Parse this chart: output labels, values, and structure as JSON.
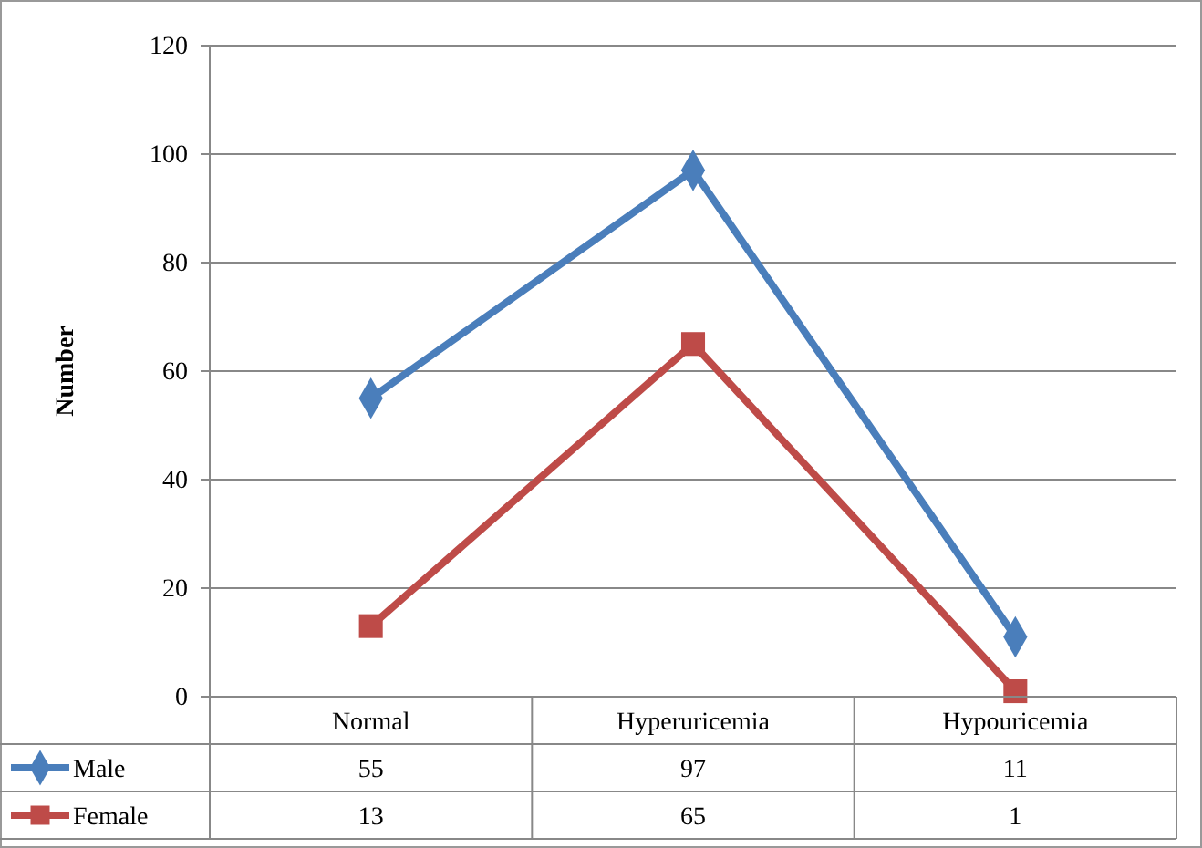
{
  "chart_data": {
    "type": "line",
    "ylabel": "Number",
    "categories": [
      "Normal",
      "Hyperuricemia",
      "Hypouricemia"
    ],
    "series": [
      {
        "name": "Male",
        "color": "#4a7ebb",
        "marker": "diamond",
        "values": [
          55,
          97,
          11
        ]
      },
      {
        "name": "Female",
        "color": "#be4b48",
        "marker": "square",
        "values": [
          13,
          65,
          1
        ]
      }
    ],
    "ylim": [
      0,
      120
    ],
    "yticks": [
      0,
      20,
      40,
      60,
      80,
      100,
      120
    ],
    "grid": "y",
    "legend": "bottom",
    "data_labels": true
  }
}
